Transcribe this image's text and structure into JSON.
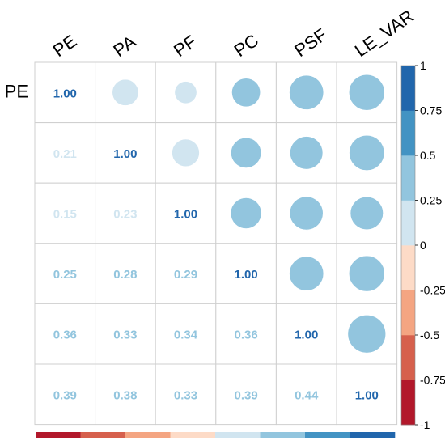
{
  "chart_data": {
    "type": "heatmap",
    "variables": [
      "PE",
      "PA",
      "PF",
      "PC",
      "PSF",
      "LE_VAR"
    ],
    "row_labels": [
      "PE",
      "",
      "",
      "",
      "",
      ""
    ],
    "matrix": [
      [
        1.0,
        0.21,
        0.15,
        0.25,
        0.36,
        0.39
      ],
      [
        0.21,
        1.0,
        0.23,
        0.28,
        0.33,
        0.38
      ],
      [
        0.15,
        0.23,
        1.0,
        0.29,
        0.34,
        0.33
      ],
      [
        0.25,
        0.28,
        0.29,
        1.0,
        0.36,
        0.39
      ],
      [
        0.36,
        0.33,
        0.34,
        0.36,
        1.0,
        0.44
      ],
      [
        0.39,
        0.38,
        0.33,
        0.39,
        0.44,
        1.0
      ]
    ],
    "lower_labels": [
      [
        "1.00",
        "",
        "",
        "",
        "",
        ""
      ],
      [
        "0.21",
        "1.00",
        "",
        "",
        "",
        ""
      ],
      [
        "0.15",
        "0.23",
        "1.00",
        "",
        "",
        ""
      ],
      [
        "0.25",
        "0.28",
        "0.29",
        "1.00",
        "",
        ""
      ],
      [
        "0.36",
        "0.33",
        "0.34",
        "0.36",
        "1.00",
        ""
      ],
      [
        "0.39",
        "0.38",
        "0.33",
        "0.39",
        "0.44",
        "1.00"
      ]
    ],
    "upper_display": "circle",
    "lower_display": "number",
    "color_scale": {
      "range": [
        -1,
        1
      ],
      "tick_labels": [
        "1",
        "0.75",
        "0.5",
        "0.25",
        "0",
        "-0.25",
        "-0.5",
        "-0.75",
        "-1"
      ],
      "colors": [
        "#b2182b",
        "#d6604d",
        "#f4a582",
        "#fddbc7",
        "#d1e5f0",
        "#92c5de",
        "#4393c3",
        "#2166ac"
      ]
    }
  }
}
